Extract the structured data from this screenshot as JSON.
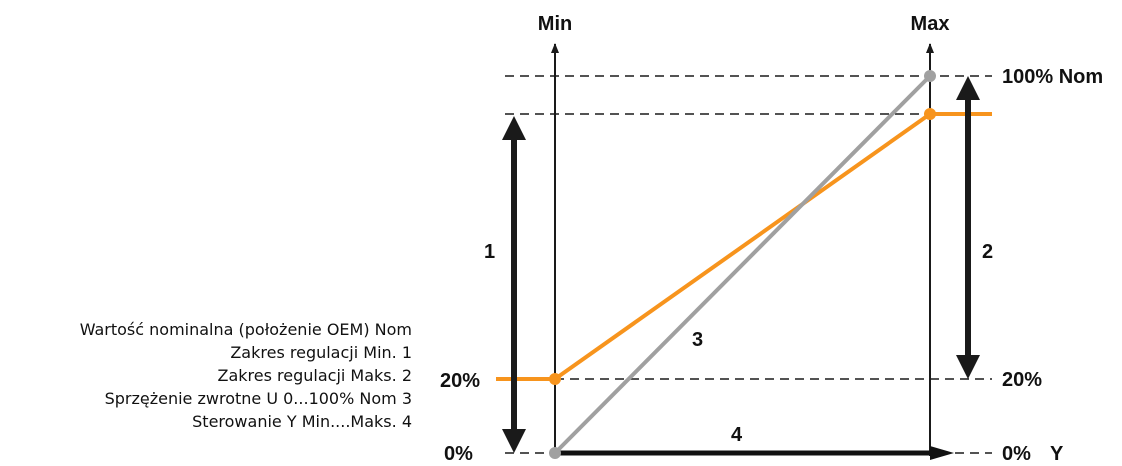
{
  "diagram": {
    "top_labels": {
      "min": "Min",
      "max": "Max"
    },
    "level_labels": {
      "nom_100": "100% Nom",
      "right_20": "20%",
      "right_0": "0%",
      "y_axis": "Y",
      "left_20": "20%",
      "left_0": "0%"
    },
    "numbers": {
      "n1": "1",
      "n2": "2",
      "n3": "3",
      "n4": "4"
    },
    "legend": [
      "Wartość nominalna (położenie OEM) Nom",
      "Zakres regulacji Min. 1",
      "Zakres regulacji Maks. 2",
      "Sprzężenie zwrotne U 0...100% Nom 3",
      "Sterowanie Y Min....Maks. 4"
    ],
    "colors": {
      "orange_line": "#F7941D",
      "gray_line": "#A0A0A0",
      "axes": "#1A1A1A"
    }
  }
}
